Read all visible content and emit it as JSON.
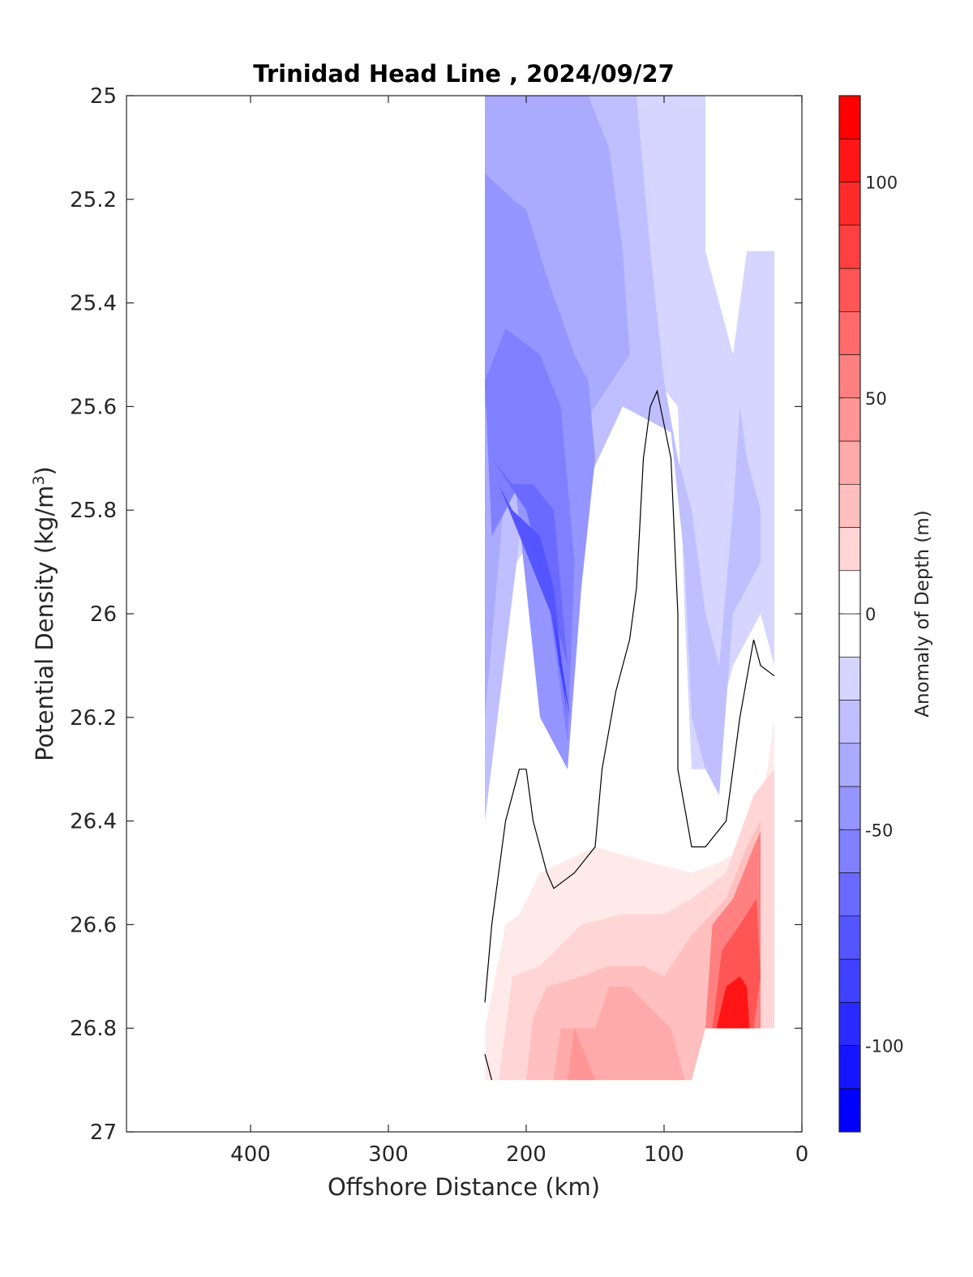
{
  "chart_data": {
    "type": "heatmap",
    "subtype": "filled-contour",
    "title": "Trinidad Head Line , 2024/09/27",
    "xlabel": "Offshore Distance (km)",
    "ylabel": "Potential Density (kg/m",
    "ylabel_superscript": "3",
    "ylabel_suffix": ")",
    "xlim": [
      490,
      0
    ],
    "ylim": [
      25,
      27
    ],
    "x_ticks": [
      400,
      300,
      200,
      100,
      0
    ],
    "y_ticks": [
      25,
      25.2,
      25.4,
      25.6,
      25.8,
      26,
      26.2,
      26.4,
      26.6,
      26.8,
      27
    ],
    "x_tick_labels": [
      "400",
      "300",
      "200",
      "100",
      "0"
    ],
    "y_tick_labels": [
      "25",
      "25.2",
      "25.4",
      "25.6",
      "25.8",
      "26",
      "26.2",
      "26.4",
      "26.6",
      "26.8",
      "27"
    ],
    "colorbar": {
      "label": "Anomaly of Depth (m)",
      "range": [
        -120,
        120
      ],
      "step": 10,
      "ticks": [
        -100,
        -50,
        0,
        50,
        100
      ],
      "tick_labels": [
        "-100",
        "-50",
        "0",
        "50",
        "100"
      ],
      "low_color": "#0000ff",
      "high_color": "#ff0000"
    },
    "regions": [
      {
        "level": -20,
        "points": [
          [
            230,
            25.0
          ],
          [
            70,
            25.0
          ],
          [
            70,
            25.3
          ],
          [
            50,
            25.5
          ],
          [
            40,
            25.3
          ],
          [
            20,
            25.3
          ],
          [
            20,
            26.1
          ],
          [
            30,
            26.0
          ],
          [
            50,
            26.1
          ],
          [
            70,
            26.3
          ],
          [
            80,
            26.3
          ],
          [
            85,
            26.0
          ],
          [
            90,
            25.6
          ],
          [
            120,
            25.5
          ],
          [
            160,
            25.7
          ],
          [
            230,
            26.0
          ]
        ]
      },
      {
        "level": -30,
        "points": [
          [
            230,
            25.0
          ],
          [
            120,
            25.0
          ],
          [
            110,
            25.3
          ],
          [
            100,
            25.55
          ],
          [
            90,
            25.7
          ],
          [
            80,
            25.8
          ],
          [
            70,
            26.0
          ],
          [
            60,
            26.1
          ],
          [
            50,
            25.8
          ],
          [
            45,
            25.6
          ],
          [
            40,
            25.7
          ],
          [
            30,
            25.8
          ],
          [
            30,
            25.9
          ],
          [
            50,
            26.0
          ],
          [
            60,
            26.35
          ],
          [
            70,
            26.3
          ],
          [
            80,
            26.2
          ],
          [
            85,
            25.9
          ],
          [
            95,
            25.65
          ],
          [
            130,
            25.6
          ],
          [
            165,
            25.8
          ],
          [
            200,
            25.75
          ],
          [
            230,
            26.4
          ]
        ]
      },
      {
        "level": -40,
        "points": [
          [
            230,
            25.0
          ],
          [
            155,
            25.0
          ],
          [
            140,
            25.1
          ],
          [
            130,
            25.3
          ],
          [
            125,
            25.5
          ],
          [
            150,
            25.6
          ],
          [
            175,
            25.7
          ],
          [
            195,
            25.65
          ],
          [
            215,
            25.75
          ],
          [
            230,
            26.2
          ]
        ]
      },
      {
        "level": -50,
        "points": [
          [
            230,
            25.15
          ],
          [
            210,
            25.2
          ],
          [
            200,
            25.22
          ],
          [
            185,
            25.35
          ],
          [
            165,
            25.5
          ],
          [
            155,
            25.55
          ],
          [
            150,
            25.7
          ],
          [
            160,
            25.95
          ],
          [
            170,
            26.3
          ],
          [
            190,
            26.2
          ],
          [
            210,
            25.7
          ],
          [
            230,
            25.6
          ]
        ]
      },
      {
        "level": -60,
        "points": [
          [
            230,
            25.55
          ],
          [
            215,
            25.45
          ],
          [
            190,
            25.5
          ],
          [
            175,
            25.6
          ],
          [
            165,
            25.9
          ],
          [
            170,
            26.25
          ],
          [
            185,
            25.95
          ],
          [
            205,
            25.75
          ],
          [
            225,
            25.85
          ]
        ]
      },
      {
        "level": -70,
        "points": [
          [
            225,
            25.7
          ],
          [
            210,
            25.75
          ],
          [
            195,
            25.75
          ],
          [
            180,
            25.8
          ],
          [
            170,
            26.1
          ],
          [
            185,
            25.95
          ],
          [
            200,
            25.8
          ]
        ]
      },
      {
        "level": -80,
        "points": [
          [
            220,
            25.75
          ],
          [
            210,
            25.8
          ],
          [
            190,
            25.85
          ],
          [
            180,
            25.95
          ],
          [
            170,
            26.2
          ],
          [
            182,
            26.0
          ]
        ]
      },
      {
        "level": -90,
        "points": [
          [
            180,
            26.0
          ],
          [
            168,
            26.2
          ],
          [
            176,
            26.1
          ]
        ]
      },
      {
        "level": 10,
        "points": [
          [
            230,
            26.9
          ],
          [
            230,
            26.8
          ],
          [
            215,
            26.6
          ],
          [
            205,
            26.58
          ],
          [
            190,
            26.5
          ],
          [
            150,
            26.45
          ],
          [
            110,
            26.48
          ],
          [
            80,
            26.5
          ],
          [
            60,
            26.48
          ],
          [
            40,
            26.45
          ],
          [
            25,
            26.3
          ],
          [
            20,
            26.2
          ],
          [
            20,
            26.8
          ],
          [
            40,
            26.8
          ],
          [
            70,
            26.8
          ],
          [
            80,
            26.9
          ]
        ]
      },
      {
        "level": 20,
        "points": [
          [
            220,
            26.9
          ],
          [
            210,
            26.7
          ],
          [
            190,
            26.68
          ],
          [
            160,
            26.6
          ],
          [
            130,
            26.58
          ],
          [
            100,
            26.58
          ],
          [
            80,
            26.55
          ],
          [
            55,
            26.5
          ],
          [
            35,
            26.35
          ],
          [
            20,
            26.3
          ],
          [
            20,
            26.8
          ],
          [
            40,
            26.8
          ],
          [
            70,
            26.8
          ],
          [
            80,
            26.9
          ]
        ]
      },
      {
        "level": 30,
        "points": [
          [
            200,
            26.9
          ],
          [
            195,
            26.78
          ],
          [
            185,
            26.72
          ],
          [
            160,
            26.7
          ],
          [
            140,
            26.68
          ],
          [
            115,
            26.68
          ],
          [
            100,
            26.7
          ],
          [
            80,
            26.62
          ],
          [
            55,
            26.55
          ],
          [
            40,
            26.45
          ],
          [
            30,
            26.4
          ],
          [
            30,
            26.8
          ],
          [
            70,
            26.8
          ],
          [
            80,
            26.9
          ]
        ]
      },
      {
        "level": 40,
        "points": [
          [
            180,
            26.9
          ],
          [
            175,
            26.8
          ],
          [
            160,
            26.8
          ],
          [
            150,
            26.8
          ],
          [
            140,
            26.72
          ],
          [
            125,
            26.72
          ],
          [
            110,
            26.76
          ],
          [
            95,
            26.8
          ],
          [
            85,
            26.9
          ]
        ]
      },
      {
        "level": 50,
        "points": [
          [
            170,
            26.9
          ],
          [
            165,
            26.8
          ],
          [
            150,
            26.9
          ]
        ]
      },
      {
        "level": 60,
        "points": [
          [
            70,
            26.8
          ],
          [
            65,
            26.6
          ],
          [
            50,
            26.55
          ],
          [
            35,
            26.45
          ],
          [
            30,
            26.42
          ],
          [
            30,
            26.8
          ]
        ]
      },
      {
        "level": 80,
        "points": [
          [
            65,
            26.8
          ],
          [
            58,
            26.65
          ],
          [
            45,
            26.6
          ],
          [
            33,
            26.55
          ],
          [
            30,
            26.7
          ],
          [
            35,
            26.8
          ]
        ]
      },
      {
        "level": 110,
        "points": [
          [
            62,
            26.8
          ],
          [
            55,
            26.72
          ],
          [
            45,
            26.7
          ],
          [
            40,
            26.72
          ],
          [
            38,
            26.8
          ]
        ]
      }
    ],
    "zero_contours": [
      [
        [
          230,
          26.75
        ],
        [
          225,
          26.6
        ],
        [
          215,
          26.4
        ],
        [
          205,
          26.3
        ],
        [
          200,
          26.3
        ],
        [
          195,
          26.4
        ],
        [
          185,
          26.5
        ],
        [
          180,
          26.53
        ],
        [
          165,
          26.5
        ],
        [
          150,
          26.45
        ],
        [
          145,
          26.3
        ],
        [
          135,
          26.15
        ],
        [
          125,
          26.05
        ],
        [
          120,
          25.95
        ],
        [
          115,
          25.7
        ],
        [
          110,
          25.6
        ],
        [
          105,
          25.57
        ],
        [
          95,
          25.7
        ],
        [
          90,
          26.0
        ],
        [
          90,
          26.3
        ],
        [
          80,
          26.45
        ],
        [
          70,
          26.45
        ],
        [
          55,
          26.4
        ],
        [
          45,
          26.2
        ],
        [
          35,
          26.05
        ],
        [
          30,
          26.1
        ],
        [
          20,
          26.12
        ]
      ],
      [
        [
          230,
          26.85
        ],
        [
          225,
          26.9
        ]
      ]
    ]
  }
}
